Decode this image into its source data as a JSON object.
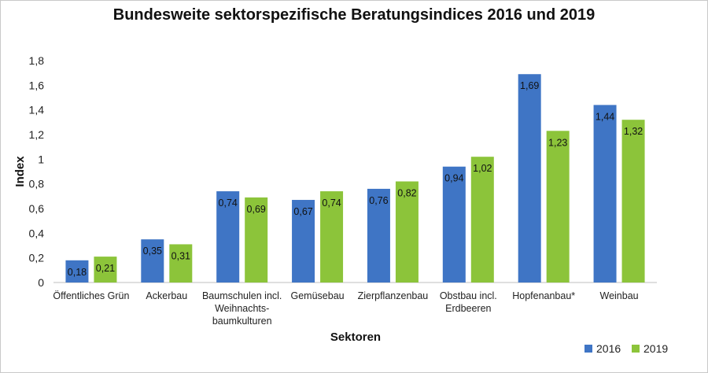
{
  "colors": {
    "series_2016": "#3f75c5",
    "series_2019": "#8cc43a",
    "grid": "#d9d9d9",
    "axis": "#bfbfbf"
  },
  "chart_data": {
    "type": "bar",
    "title": "Bundesweite sektorspezifische Beratungsindices 2016 und 2019",
    "xlabel": "Sektoren",
    "ylabel": "Index",
    "ylim": [
      0,
      1.8
    ],
    "yticks": [
      "0",
      "0,2",
      "0,4",
      "0,6",
      "0,8",
      "1",
      "1,2",
      "1,4",
      "1,6",
      "1,8"
    ],
    "grid": false,
    "legend_position": "bottom-right",
    "categories": [
      [
        "Öffentliches Grün"
      ],
      [
        "Ackerbau"
      ],
      [
        "Baumschulen incl.",
        "Weihnachts-",
        "baumkulturen"
      ],
      [
        "Gemüsebau"
      ],
      [
        "Zierpflanzenbau"
      ],
      [
        "Obstbau incl.",
        "Erdbeeren"
      ],
      [
        "Hopfenanbau*"
      ],
      [
        "Weinbau"
      ]
    ],
    "series": [
      {
        "name": "2016",
        "values": [
          0.18,
          0.35,
          0.74,
          0.67,
          0.76,
          0.94,
          1.69,
          1.44
        ],
        "labels": [
          "0,18",
          "0,35",
          "0,74",
          "0,67",
          "0,76",
          "0,94",
          "1,69",
          "1,44"
        ]
      },
      {
        "name": "2019",
        "values": [
          0.21,
          0.31,
          0.69,
          0.74,
          0.82,
          1.02,
          1.23,
          1.32
        ],
        "labels": [
          "0,21",
          "0,31",
          "0,69",
          "0,74",
          "0,82",
          "1,02",
          "1,23",
          "1,32"
        ]
      }
    ]
  }
}
